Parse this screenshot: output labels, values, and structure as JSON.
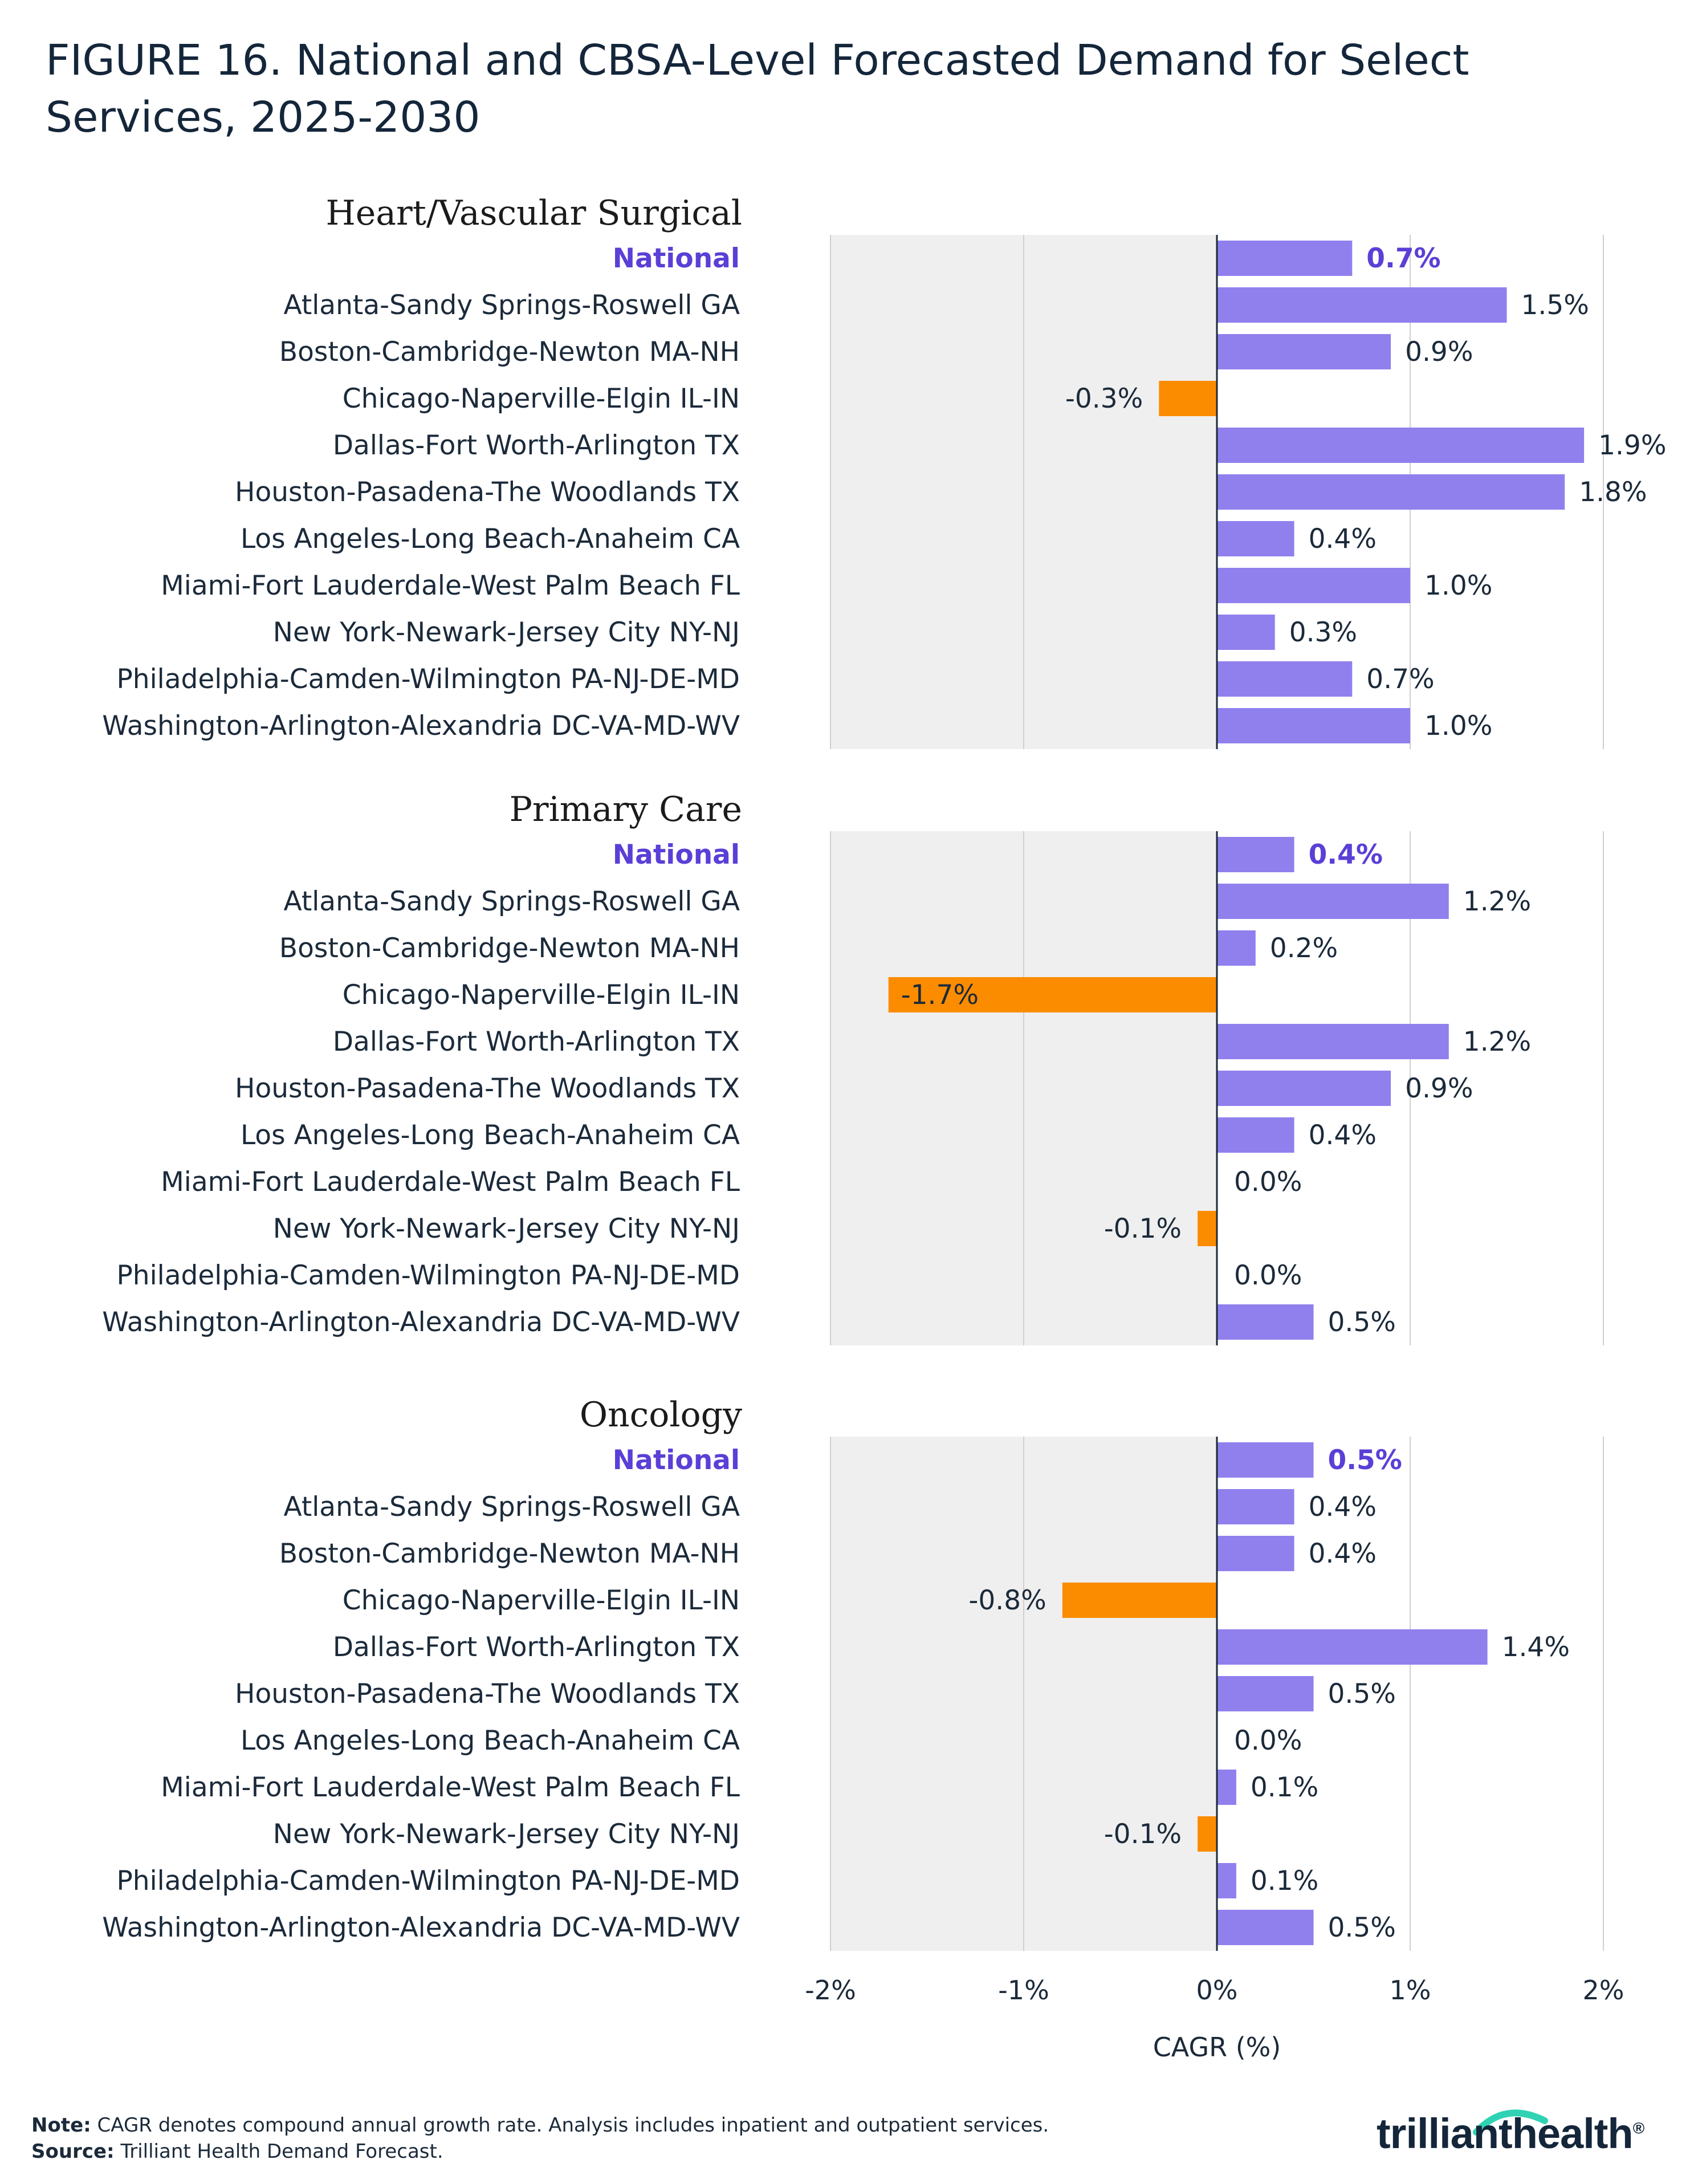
{
  "title": "FIGURE 16. National and CBSA-Level Forecasted Demand for Select Services, 2025-2030",
  "note_label": "Note:",
  "note_text": "CAGR denotes compound annual growth rate. Analysis includes inpatient and outpatient services.",
  "source_label": "Source:",
  "source_text": "Trilliant Health Demand Forecast.",
  "logo": {
    "text_a": "trilliant",
    "text_b": "health",
    "reg": "®"
  },
  "colors": {
    "positive": "#8f80ee",
    "negative": "#fb8c00",
    "national_text": "#5b3fd6",
    "panel_bg": "#efefef",
    "grid": "#cfcfcf",
    "zero": "#1b2a3a"
  },
  "chart_data": {
    "type": "bar",
    "orientation": "horizontal",
    "xlabel": "CAGR (%)",
    "xlim": [
      -2,
      2
    ],
    "xticks": [
      -2,
      -1,
      0,
      1,
      2
    ],
    "xtick_labels": [
      "-2%",
      "-1%",
      "0%",
      "1%",
      "2%"
    ],
    "categories": [
      "National",
      "Atlanta-Sandy Springs-Roswell GA",
      "Boston-Cambridge-Newton MA-NH",
      "Chicago-Naperville-Elgin IL-IN",
      "Dallas-Fort Worth-Arlington TX",
      "Houston-Pasadena-The Woodlands TX",
      "Los Angeles-Long Beach-Anaheim CA",
      "Miami-Fort Lauderdale-West Palm Beach FL",
      "New York-Newark-Jersey City NY-NJ",
      "Philadelphia-Camden-Wilmington PA-NJ-DE-MD",
      "Washington-Arlington-Alexandria DC-VA-MD-WV"
    ],
    "panels": [
      {
        "title": "Heart/Vascular Surgical",
        "values": [
          0.7,
          1.5,
          0.9,
          -0.3,
          1.9,
          1.8,
          0.4,
          1.0,
          0.3,
          0.7,
          1.0
        ],
        "labels": [
          "0.7%",
          "1.5%",
          "0.9%",
          "-0.3%",
          "1.9%",
          "1.8%",
          "0.4%",
          "1.0%",
          "0.3%",
          "0.7%",
          "1.0%"
        ]
      },
      {
        "title": "Primary Care",
        "values": [
          0.4,
          1.2,
          0.2,
          -1.7,
          1.2,
          0.9,
          0.4,
          0.0,
          -0.1,
          0.0,
          0.5
        ],
        "labels": [
          "0.4%",
          "1.2%",
          "0.2%",
          "-1.7%",
          "1.2%",
          "0.9%",
          "0.4%",
          "0.0%",
          "-0.1%",
          "0.0%",
          "0.5%"
        ]
      },
      {
        "title": "Oncology",
        "values": [
          0.5,
          0.4,
          0.4,
          -0.8,
          1.4,
          0.5,
          0.0,
          0.1,
          -0.1,
          0.1,
          0.5
        ],
        "labels": [
          "0.5%",
          "0.4%",
          "0.4%",
          "-0.8%",
          "1.4%",
          "0.5%",
          "0.0%",
          "0.1%",
          "-0.1%",
          "0.1%",
          "0.5%"
        ]
      }
    ]
  }
}
